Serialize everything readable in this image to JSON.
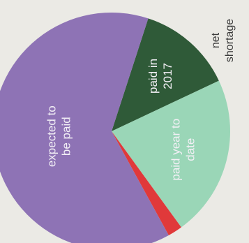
{
  "chart_data": {
    "type": "pie",
    "slices": [
      {
        "label": [
          "paid in",
          "2017"
        ],
        "value": 13,
        "color": "#2f5a38",
        "label_color": "#6f8c74"
      },
      {
        "label": [
          "paid year to",
          "date"
        ],
        "value": 22,
        "color": "#9ad6b7",
        "label_color": "#2f5a3c"
      },
      {
        "label": [
          "net",
          "shortage"
        ],
        "value": 2,
        "color": "#e0393a",
        "label_color": "#3a3a3a",
        "outside": true
      },
      {
        "label": [
          "expected to",
          "be paid"
        ],
        "value": 63,
        "color": "#8e73b5",
        "label_color": "#f3eef8"
      }
    ]
  }
}
